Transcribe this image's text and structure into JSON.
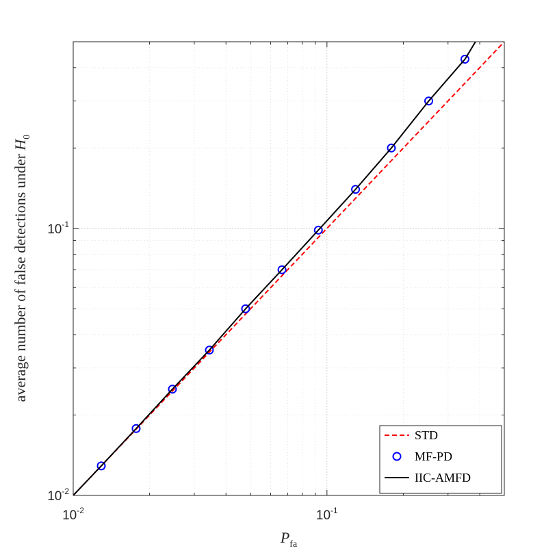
{
  "chart_data": {
    "type": "line",
    "x_scale": "log",
    "y_scale": "log",
    "xlim": [
      0.01,
      0.5
    ],
    "ylim": [
      0.01,
      0.5
    ],
    "xlabel": {
      "base": "P",
      "sub": "fa"
    },
    "ylabel": {
      "text": "average number of false detections under ",
      "symbol": "H",
      "sub": "0"
    },
    "x_ticks": [
      {
        "value": 0.01,
        "base": "10",
        "exp": "-2"
      },
      {
        "value": 0.1,
        "base": "10",
        "exp": "-1"
      }
    ],
    "y_ticks": [
      {
        "value": 0.01,
        "base": "10",
        "exp": "-2"
      },
      {
        "value": 0.1,
        "base": "10",
        "exp": "-1"
      }
    ],
    "grid": true,
    "legend_position": "bottom-right",
    "series": [
      {
        "name": "STD",
        "style": "dashed-line",
        "color": "#ff0000",
        "x": [
          0.01,
          0.02,
          0.05,
          0.1,
          0.2,
          0.3,
          0.5
        ],
        "y": [
          0.01,
          0.02,
          0.05,
          0.1,
          0.2,
          0.3,
          0.5
        ]
      },
      {
        "name": "MF-PD",
        "style": "circle-markers",
        "color": "#0000ff",
        "x": [
          0.0129,
          0.0177,
          0.0246,
          0.0344,
          0.0478,
          0.0665,
          0.0925,
          0.1296,
          0.1794,
          0.2518,
          0.3498
        ],
        "y": [
          0.0129,
          0.0178,
          0.025,
          0.035,
          0.05,
          0.07,
          0.0985,
          0.14,
          0.2,
          0.3,
          0.43
        ]
      },
      {
        "name": "IIC-AMFD",
        "style": "solid-line",
        "color": "#000000",
        "x": [
          0.01,
          0.0129,
          0.0177,
          0.0246,
          0.0344,
          0.0478,
          0.0665,
          0.0925,
          0.1296,
          0.1794,
          0.2518,
          0.3498,
          0.385
        ],
        "y": [
          0.01,
          0.0129,
          0.0178,
          0.025,
          0.035,
          0.05,
          0.07,
          0.0985,
          0.14,
          0.2,
          0.3,
          0.43,
          0.5
        ]
      }
    ]
  }
}
